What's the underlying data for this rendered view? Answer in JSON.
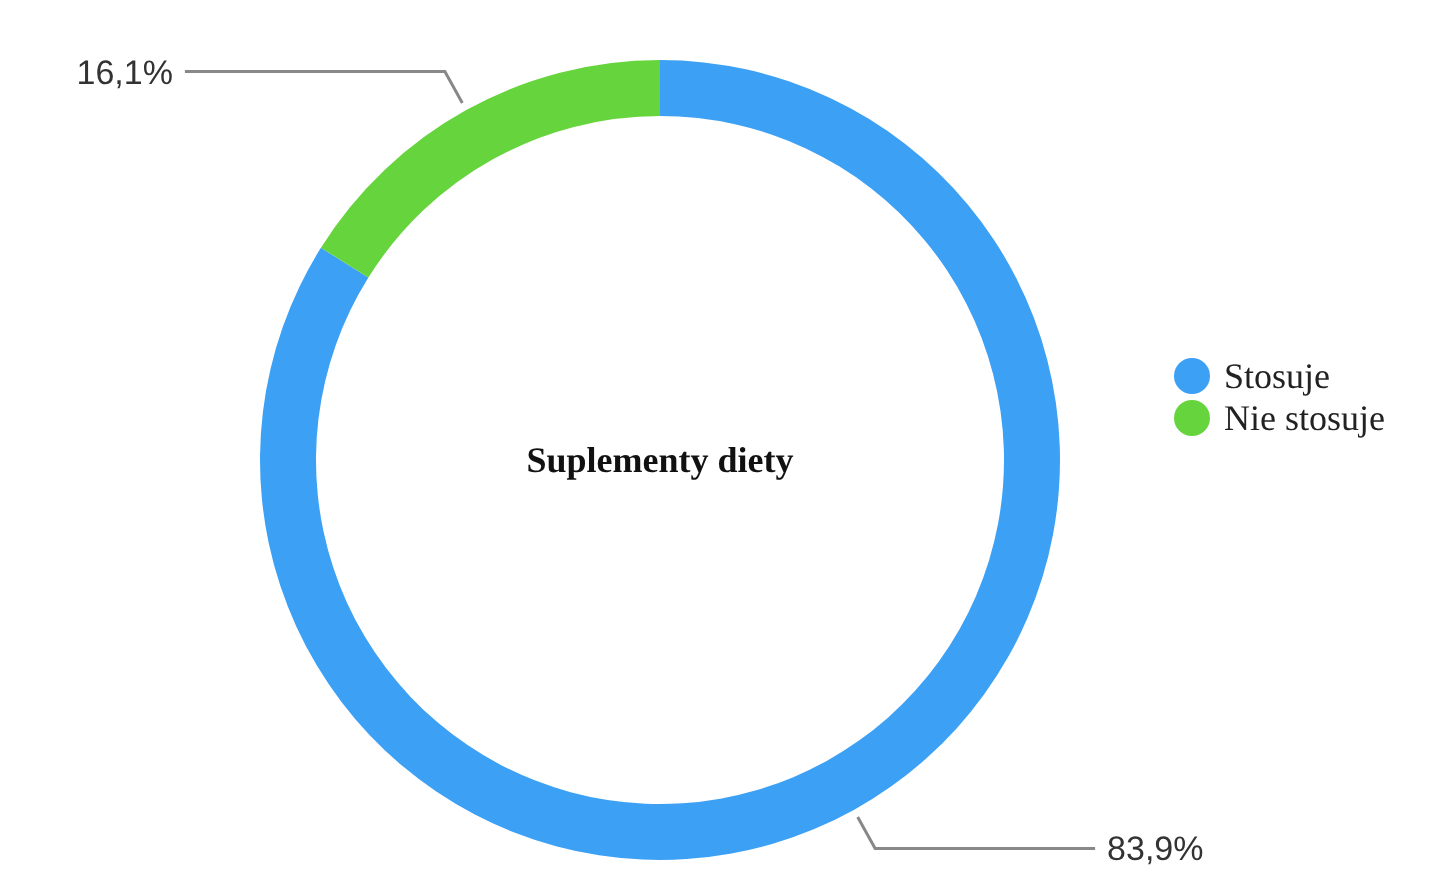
{
  "chart_data": {
    "type": "donut",
    "title": "Suplementy diety",
    "categories": [
      "Stosuje",
      "Nie stosuje"
    ],
    "values": [
      83.9,
      16.1
    ],
    "colors": [
      "#3ca0f5",
      "#66d43c"
    ],
    "value_labels": [
      "83,9%",
      "16,1%"
    ],
    "legend": "right"
  }
}
